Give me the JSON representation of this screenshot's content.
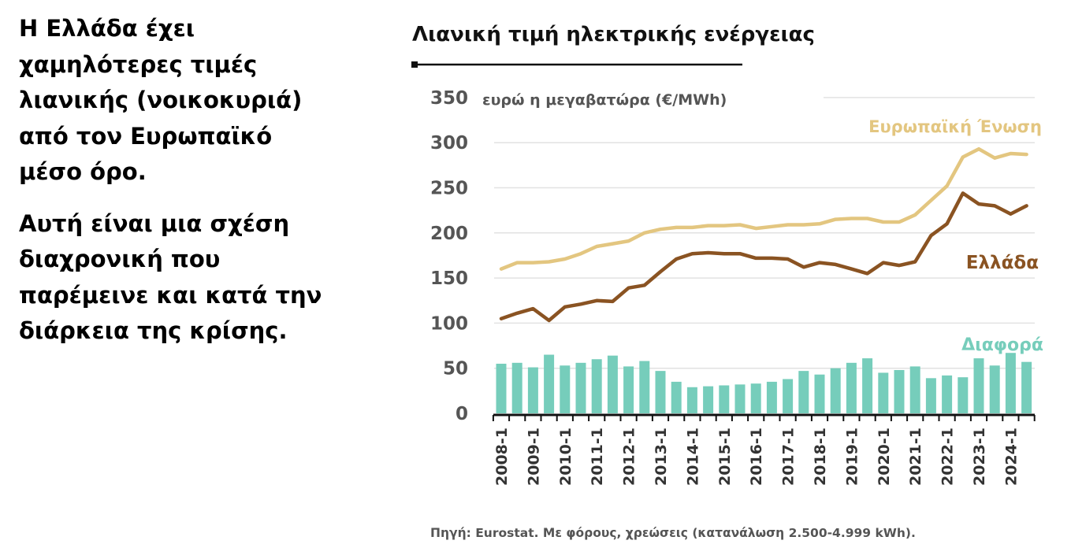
{
  "left_text": {
    "paragraphs": [
      [
        "Η Ελλάδα έχει",
        "χαμηλότερες τιμές",
        "λιανικής (νοικοκυριά)",
        "από τον Ευρωπαϊκό",
        "μέσο όρο."
      ],
      [
        "Αυτή είναι μια σχέση",
        "διαχρονική που",
        "παρέμεινε και κατά την",
        "διάρκεια της κρίσης."
      ]
    ]
  },
  "chart_data": {
    "type": "line+bar",
    "title": "Λιανική τιμή ηλεκτρικής ενέργειας",
    "ylabel": "ευρώ η μεγαβατώρα (€/MWh)",
    "ylim": [
      0,
      350
    ],
    "yticks": [
      0,
      50,
      100,
      150,
      200,
      250,
      300,
      350
    ],
    "grid": true,
    "x": [
      "2008-1",
      "2008-2",
      "2009-1",
      "2009-2",
      "2010-1",
      "2010-2",
      "2011-1",
      "2011-2",
      "2012-1",
      "2012-2",
      "2013-1",
      "2013-2",
      "2014-1",
      "2014-2",
      "2015-1",
      "2015-2",
      "2016-1",
      "2016-2",
      "2017-1",
      "2017-2",
      "2018-1",
      "2018-2",
      "2019-1",
      "2019-2",
      "2020-1",
      "2020-2",
      "2021-1",
      "2021-2",
      "2022-1",
      "2022-2",
      "2023-1",
      "2023-2",
      "2024-1",
      "2024-2"
    ],
    "xticklabels": [
      "2008-1",
      "2009-1",
      "2010-1",
      "2011-1",
      "2012-1",
      "2013-1",
      "2014-1",
      "2015-1",
      "2016-1",
      "2017-1",
      "2018-1",
      "2019-1",
      "2020-1",
      "2021-1",
      "2022-1",
      "2023-1",
      "2024-1"
    ],
    "series": [
      {
        "name": "Ευρωπαϊκή Ένωση",
        "type": "line",
        "color": "#e3c680",
        "values": [
          160,
          167,
          167,
          168,
          171,
          177,
          185,
          188,
          191,
          200,
          204,
          206,
          206,
          208,
          208,
          209,
          205,
          207,
          209,
          209,
          210,
          215,
          216,
          216,
          212,
          212,
          220,
          236,
          252,
          284,
          293,
          283,
          288,
          287
        ]
      },
      {
        "name": "Ελλάδα",
        "type": "line",
        "color": "#8a5322",
        "values": [
          105,
          111,
          116,
          103,
          118,
          121,
          125,
          124,
          139,
          142,
          157,
          171,
          177,
          178,
          177,
          177,
          172,
          172,
          171,
          162,
          167,
          165,
          160,
          155,
          167,
          164,
          168,
          197,
          210,
          244,
          232,
          230,
          221,
          230
        ]
      },
      {
        "name": "Διαφορά",
        "type": "bar",
        "color": "#76cdbb",
        "values": [
          55,
          56,
          51,
          65,
          53,
          56,
          60,
          64,
          52,
          58,
          47,
          35,
          29,
          30,
          31,
          32,
          33,
          35,
          38,
          47,
          43,
          50,
          56,
          61,
          45,
          48,
          52,
          39,
          42,
          40,
          61,
          53,
          67,
          57
        ]
      }
    ],
    "source": "Πηγή: Eurostat. Με φόρους, χρεώσεις (κατανάλωση 2.500-4.999 kWh)."
  }
}
